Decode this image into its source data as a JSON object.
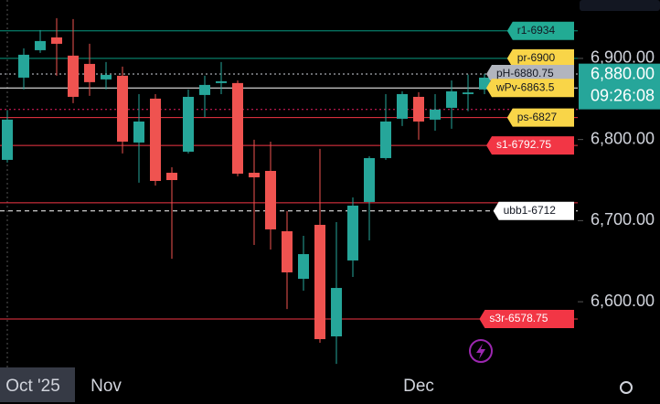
{
  "chart_data": {
    "type": "candlestick",
    "ylim": [
      6519,
      6972
    ],
    "yticks": [
      {
        "value": 6900,
        "label": "6,900.00"
      },
      {
        "value": 6800,
        "label": "6,800.00"
      },
      {
        "value": 6700,
        "label": "6,700.00"
      },
      {
        "value": 6600,
        "label": "6,600.00"
      }
    ],
    "categories": [
      null,
      null,
      null,
      null,
      null,
      null,
      "Nov",
      null,
      null,
      null,
      null,
      null,
      null,
      null,
      null,
      null,
      null,
      null,
      null,
      null,
      null,
      null,
      null,
      null,
      null,
      "Dec",
      null,
      null,
      null,
      null
    ],
    "crosshair_label": "Oct '25",
    "up_color": "#26a69a",
    "down_color": "#ef5350",
    "series": [
      {
        "open": [
          6774.9,
          6876.3,
          6910.1,
          6925.9,
          6903.4,
          6893.2,
          6874.1,
          6878.6,
          6796.3,
          6850.4,
          6759,
          6785,
          6854.9,
          6869.6,
          6869.6,
          6759,
          6761.3,
          6686.9,
          6628.3,
          6694.8,
          6557.3,
          6650.9,
          6723,
          6777.1,
          6825.6,
          6852.6,
          6824.5,
          6839.1,
          6856,
          6861.7
        ],
        "high": [
          6835.7,
          6912.4,
          6935,
          6949.6,
          6948.5,
          6918,
          6895.5,
          6889.9,
          6856,
          6856,
          6765.8,
          6861.7,
          6878.6,
          6895.5,
          6872.9,
          6799.7,
          6797.4,
          6711.7,
          6681.3,
          6788.4,
          6698.2,
          6728.6,
          6779.4,
          6856,
          6859.4,
          6858.3,
          6856,
          6872.9,
          6880,
          6880.8
        ],
        "low": [
          6771.5,
          6861.7,
          6906.8,
          6878.6,
          6844.8,
          6853.8,
          6861.7,
          6782.8,
          6746.7,
          6743.3,
          6653,
          6782.8,
          6827.8,
          6856,
          6754.6,
          6670,
          6664.4,
          6591,
          6613.6,
          6549.4,
          6523.4,
          6630.6,
          6675.7,
          6774.9,
          6816.6,
          6799.7,
          6810.9,
          6813.2,
          6835,
          6856
        ],
        "close": [
          6824.5,
          6904.5,
          6921.4,
          6918,
          6852.6,
          6870.7,
          6879.7,
          6797.4,
          6822.2,
          6748.9,
          6750,
          6852.6,
          6867.3,
          6871.8,
          6757.9,
          6753.4,
          6689.2,
          6636.2,
          6658.7,
          6553.9,
          6617,
          6718.5,
          6777.1,
          6822.2,
          6856,
          6822.2,
          6836.9,
          6859.4,
          6858,
          6876.3
        ]
      }
    ],
    "levels": [
      {
        "label": "r1-6934",
        "value": 6934,
        "color": "#089981",
        "style": "solid",
        "label_color": "#22ab94",
        "text_color": "#131722"
      },
      {
        "label": "pr-6900",
        "value": 6900,
        "color": "#089981",
        "style": "solid",
        "label_color": "#f9d548",
        "text_color": "#131722"
      },
      {
        "label": "pH-6880.75",
        "value": 6880.75,
        "color": "#d1d4dc",
        "style": "dotted",
        "label_color": "#b2b5be",
        "text_color": "#131722"
      },
      {
        "value": 6837,
        "color": "#e91e63",
        "style": "dotted"
      },
      {
        "label": "wPv-6863.5",
        "value": 6863.5,
        "color": "#ffffff",
        "style": "solid",
        "label_color": "#f9d548",
        "text_color": "#131722"
      },
      {
        "label": "ps-6827",
        "value": 6827,
        "color": "#f23645",
        "style": "solid",
        "label_color": "#f9d548",
        "text_color": "#131722"
      },
      {
        "label": "s1-6792.75",
        "value": 6792.75,
        "color": "#f23645",
        "style": "solid",
        "label_color": "#f23645",
        "text_color": "#ffffff"
      },
      {
        "value": 6722,
        "color": "#f23645",
        "style": "solid"
      },
      {
        "label": "ubb1-6712",
        "value": 6712,
        "color": "#ffffff",
        "style": "dashed",
        "label_color": "#ffffff",
        "text_color": "#131722"
      },
      {
        "label": "s3r-6578.75",
        "value": 6578.75,
        "color": "#f23645",
        "style": "solid",
        "label_color": "#f23645",
        "text_color": "#ffffff"
      }
    ],
    "last_price": {
      "value": 6880,
      "label": "6,880.00"
    },
    "countdown": "09:26:08",
    "last_price_color": "#26a69a"
  }
}
